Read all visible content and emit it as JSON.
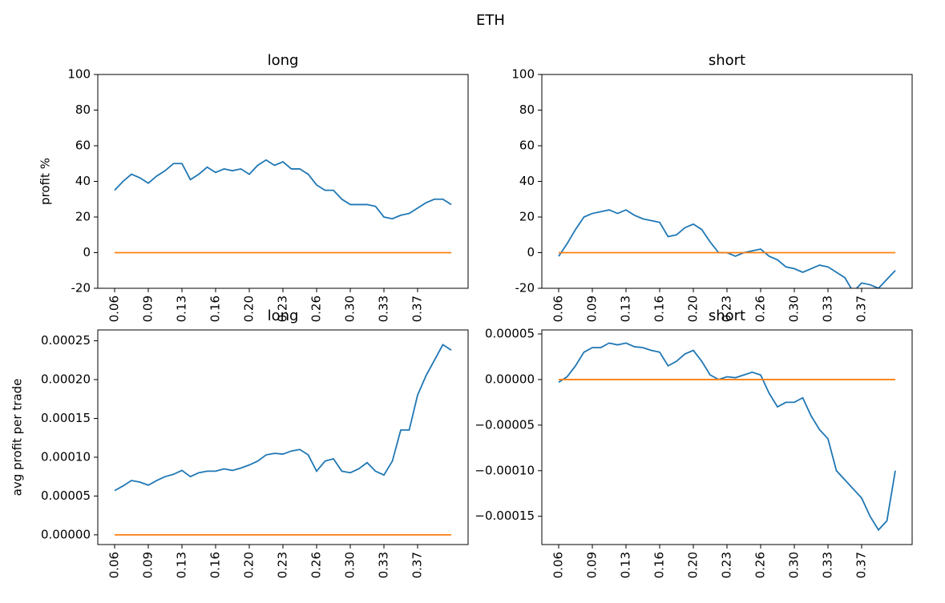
{
  "title": "ETH",
  "chart_data": [
    {
      "type": "line",
      "title": "long",
      "ylabel": "profit %",
      "x": [
        0.06,
        0.0685,
        0.077,
        0.0855,
        0.094,
        0.1025,
        0.111,
        0.1195,
        0.128,
        0.1365,
        0.145,
        0.1535,
        0.162,
        0.1705,
        0.179,
        0.1875,
        0.196,
        0.2045,
        0.213,
        0.2215,
        0.23,
        0.2385,
        0.247,
        0.2555,
        0.264,
        0.2725,
        0.281,
        0.2895,
        0.298,
        0.3065,
        0.315,
        0.3235,
        0.332,
        0.3405,
        0.349,
        0.3575,
        0.366,
        0.3745,
        0.383,
        0.3915,
        0.4
      ],
      "xlim": [
        0.043,
        0.417
      ],
      "xticks": [
        {
          "value": 0.06,
          "label": "0.06"
        },
        {
          "value": 0.094,
          "label": "0.09"
        },
        {
          "value": 0.128,
          "label": "0.13"
        },
        {
          "value": 0.162,
          "label": "0.16"
        },
        {
          "value": 0.196,
          "label": "0.20"
        },
        {
          "value": 0.23,
          "label": "0.23"
        },
        {
          "value": 0.264,
          "label": "0.26"
        },
        {
          "value": 0.298,
          "label": "0.30"
        },
        {
          "value": 0.332,
          "label": "0.33"
        },
        {
          "value": 0.366,
          "label": "0.37"
        }
      ],
      "ylim": [
        -20,
        100
      ],
      "yticks": [
        -20,
        0,
        20,
        40,
        60,
        80,
        100
      ],
      "series": [
        {
          "color": "#1f77b4",
          "values": [
            35,
            40,
            44,
            42,
            39,
            43,
            46,
            50,
            50,
            41,
            44,
            48,
            45,
            47,
            46,
            47,
            44,
            49,
            52,
            49,
            51,
            47,
            47,
            44,
            38,
            35,
            35,
            30,
            27,
            27,
            27,
            26,
            20,
            19,
            21,
            22,
            25,
            28,
            30,
            30,
            27
          ]
        },
        {
          "color": "#ff7f0e",
          "values": [
            0,
            0,
            0,
            0,
            0,
            0,
            0,
            0,
            0,
            0,
            0,
            0,
            0,
            0,
            0,
            0,
            0,
            0,
            0,
            0,
            0,
            0,
            0,
            0,
            0,
            0,
            0,
            0,
            0,
            0,
            0,
            0,
            0,
            0,
            0,
            0,
            0,
            0,
            0,
            0,
            0
          ]
        }
      ]
    },
    {
      "type": "line",
      "title": "short",
      "x": [
        0.06,
        0.0685,
        0.077,
        0.0855,
        0.094,
        0.1025,
        0.111,
        0.1195,
        0.128,
        0.1365,
        0.145,
        0.1535,
        0.162,
        0.1705,
        0.179,
        0.1875,
        0.196,
        0.2045,
        0.213,
        0.2215,
        0.23,
        0.2385,
        0.247,
        0.2555,
        0.264,
        0.2725,
        0.281,
        0.2895,
        0.298,
        0.3065,
        0.315,
        0.3235,
        0.332,
        0.3405,
        0.349,
        0.3575,
        0.366,
        0.3745,
        0.383,
        0.3915,
        0.4
      ],
      "xlim": [
        0.043,
        0.417
      ],
      "xticks": [
        {
          "value": 0.06,
          "label": "0.06"
        },
        {
          "value": 0.094,
          "label": "0.09"
        },
        {
          "value": 0.128,
          "label": "0.13"
        },
        {
          "value": 0.162,
          "label": "0.16"
        },
        {
          "value": 0.196,
          "label": "0.20"
        },
        {
          "value": 0.23,
          "label": "0.23"
        },
        {
          "value": 0.264,
          "label": "0.26"
        },
        {
          "value": 0.298,
          "label": "0.30"
        },
        {
          "value": 0.332,
          "label": "0.33"
        },
        {
          "value": 0.366,
          "label": "0.37"
        }
      ],
      "ylim": [
        -20,
        100
      ],
      "yticks": [
        -20,
        0,
        20,
        40,
        60,
        80,
        100
      ],
      "series": [
        {
          "color": "#1f77b4",
          "values": [
            -2,
            5,
            13,
            20,
            22,
            23,
            24,
            22,
            24,
            21,
            19,
            18,
            17,
            9,
            10,
            14,
            16,
            13,
            6,
            0,
            0,
            -2,
            0,
            1,
            2,
            -2,
            -4,
            -8,
            -9,
            -11,
            -9,
            -7,
            -8,
            -11,
            -14,
            -22,
            -17,
            -18,
            -20,
            -15,
            -10
          ]
        },
        {
          "color": "#ff7f0e",
          "values": [
            0,
            0,
            0,
            0,
            0,
            0,
            0,
            0,
            0,
            0,
            0,
            0,
            0,
            0,
            0,
            0,
            0,
            0,
            0,
            0,
            0,
            0,
            0,
            0,
            0,
            0,
            0,
            0,
            0,
            0,
            0,
            0,
            0,
            0,
            0,
            0,
            0,
            0,
            0,
            0,
            0
          ]
        }
      ]
    },
    {
      "type": "line",
      "title": "long",
      "ylabel": "avg profit per trade",
      "x": [
        0.06,
        0.0685,
        0.077,
        0.0855,
        0.094,
        0.1025,
        0.111,
        0.1195,
        0.128,
        0.1365,
        0.145,
        0.1535,
        0.162,
        0.1705,
        0.179,
        0.1875,
        0.196,
        0.2045,
        0.213,
        0.2215,
        0.23,
        0.2385,
        0.247,
        0.2555,
        0.264,
        0.2725,
        0.281,
        0.2895,
        0.298,
        0.3065,
        0.315,
        0.3235,
        0.332,
        0.3405,
        0.349,
        0.3575,
        0.366,
        0.3745,
        0.383,
        0.3915,
        0.4
      ],
      "xlim": [
        0.043,
        0.417
      ],
      "xticks": [
        {
          "value": 0.06,
          "label": "0.06"
        },
        {
          "value": 0.094,
          "label": "0.09"
        },
        {
          "value": 0.128,
          "label": "0.13"
        },
        {
          "value": 0.162,
          "label": "0.16"
        },
        {
          "value": 0.196,
          "label": "0.20"
        },
        {
          "value": 0.23,
          "label": "0.23"
        },
        {
          "value": 0.264,
          "label": "0.26"
        },
        {
          "value": 0.298,
          "label": "0.30"
        },
        {
          "value": 0.332,
          "label": "0.33"
        },
        {
          "value": 0.366,
          "label": "0.37"
        }
      ],
      "ylim": [
        -1.25e-05,
        0.000264
      ],
      "yticks": [
        {
          "value": 0,
          "label": "0.00000"
        },
        {
          "value": 5e-05,
          "label": "0.00005"
        },
        {
          "value": 0.0001,
          "label": "0.00010"
        },
        {
          "value": 0.00015,
          "label": "0.00015"
        },
        {
          "value": 0.0002,
          "label": "0.00020"
        },
        {
          "value": 0.00025,
          "label": "0.00025"
        }
      ],
      "series": [
        {
          "color": "#1f77b4",
          "values": [
            5.7e-05,
            6.3e-05,
            7e-05,
            6.8e-05,
            6.4e-05,
            7e-05,
            7.5e-05,
            7.8e-05,
            8.3e-05,
            7.5e-05,
            8e-05,
            8.2e-05,
            8.2e-05,
            8.5e-05,
            8.3e-05,
            8.6e-05,
            9e-05,
            9.5e-05,
            0.000103,
            0.000105,
            0.000104,
            0.000108,
            0.00011,
            0.000103,
            8.2e-05,
            9.5e-05,
            9.8e-05,
            8.2e-05,
            8e-05,
            8.5e-05,
            9.3e-05,
            8.2e-05,
            7.7e-05,
            9.5e-05,
            0.000135,
            0.000135,
            0.00018,
            0.000205,
            0.000225,
            0.000245,
            0.000238
          ]
        },
        {
          "color": "#ff7f0e",
          "values": [
            0,
            0,
            0,
            0,
            0,
            0,
            0,
            0,
            0,
            0,
            0,
            0,
            0,
            0,
            0,
            0,
            0,
            0,
            0,
            0,
            0,
            0,
            0,
            0,
            0,
            0,
            0,
            0,
            0,
            0,
            0,
            0,
            0,
            0,
            0,
            0,
            0,
            0,
            0,
            0,
            0
          ]
        }
      ]
    },
    {
      "type": "line",
      "title": "short",
      "x": [
        0.06,
        0.0685,
        0.077,
        0.0855,
        0.094,
        0.1025,
        0.111,
        0.1195,
        0.128,
        0.1365,
        0.145,
        0.1535,
        0.162,
        0.1705,
        0.179,
        0.1875,
        0.196,
        0.2045,
        0.213,
        0.2215,
        0.23,
        0.2385,
        0.247,
        0.2555,
        0.264,
        0.2725,
        0.281,
        0.2895,
        0.298,
        0.3065,
        0.315,
        0.3235,
        0.332,
        0.3405,
        0.349,
        0.3575,
        0.366,
        0.3745,
        0.383,
        0.3915,
        0.4
      ],
      "xlim": [
        0.043,
        0.417
      ],
      "xticks": [
        {
          "value": 0.06,
          "label": "0.06"
        },
        {
          "value": 0.094,
          "label": "0.09"
        },
        {
          "value": 0.128,
          "label": "0.13"
        },
        {
          "value": 0.162,
          "label": "0.16"
        },
        {
          "value": 0.196,
          "label": "0.20"
        },
        {
          "value": 0.23,
          "label": "0.23"
        },
        {
          "value": 0.264,
          "label": "0.26"
        },
        {
          "value": 0.298,
          "label": "0.30"
        },
        {
          "value": 0.332,
          "label": "0.33"
        },
        {
          "value": 0.366,
          "label": "0.37"
        }
      ],
      "ylim": [
        -0.000181,
        5.44e-05
      ],
      "yticks": [
        {
          "value": -0.00015,
          "label": "−0.00015"
        },
        {
          "value": -0.0001,
          "label": "−0.00010"
        },
        {
          "value": -5e-05,
          "label": "−0.00005"
        },
        {
          "value": 0,
          "label": "0.00000"
        },
        {
          "value": 5e-05,
          "label": "0.00005"
        }
      ],
      "series": [
        {
          "color": "#1f77b4",
          "values": [
            -3e-06,
            3e-06,
            1.5e-05,
            3e-05,
            3.5e-05,
            3.5e-05,
            4e-05,
            3.8e-05,
            4e-05,
            3.6e-05,
            3.5e-05,
            3.2e-05,
            3e-05,
            1.5e-05,
            2e-05,
            2.8e-05,
            3.2e-05,
            2e-05,
            5e-06,
            0,
            3e-06,
            2e-06,
            5e-06,
            8e-06,
            5e-06,
            -1.5e-05,
            -3e-05,
            -2.5e-05,
            -2.5e-05,
            -2e-05,
            -4e-05,
            -5.5e-05,
            -6.5e-05,
            -0.0001,
            -0.00011,
            -0.00012,
            -0.00013,
            -0.00015,
            -0.000165,
            -0.000155,
            -0.0001
          ]
        },
        {
          "color": "#ff7f0e",
          "values": [
            0,
            0,
            0,
            0,
            0,
            0,
            0,
            0,
            0,
            0,
            0,
            0,
            0,
            0,
            0,
            0,
            0,
            0,
            0,
            0,
            0,
            0,
            0,
            0,
            0,
            0,
            0,
            0,
            0,
            0,
            0,
            0,
            0,
            0,
            0,
            0,
            0,
            0,
            0,
            0,
            0
          ]
        }
      ]
    }
  ]
}
